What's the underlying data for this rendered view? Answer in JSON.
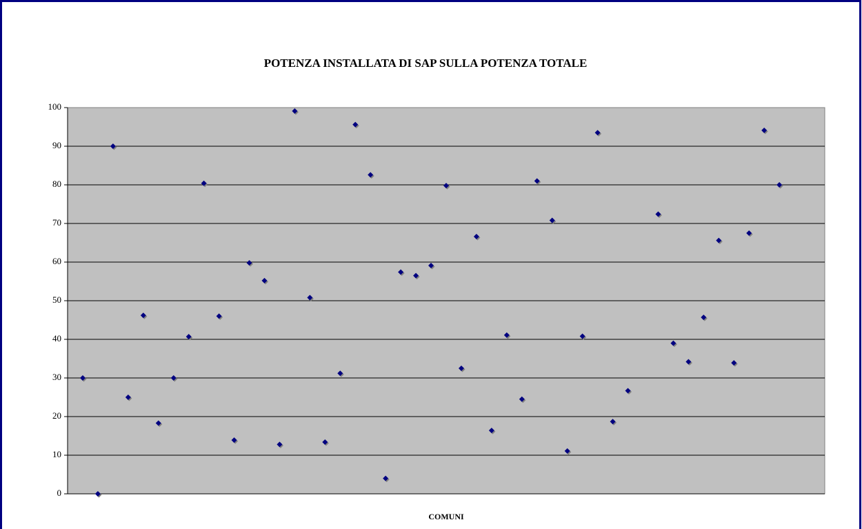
{
  "chart_data": {
    "type": "scatter",
    "title": "POTENZA INSTALLATA DI SAP SULLA POTENZA TOTALE",
    "x_label": "COMUNI",
    "x": [
      1,
      2,
      3,
      4,
      5,
      6,
      7,
      8,
      9,
      10,
      11,
      12,
      13,
      14,
      15,
      16,
      17,
      18,
      19,
      20,
      21,
      22,
      23,
      24,
      25,
      26,
      27,
      28,
      29,
      30,
      31,
      32,
      33,
      34,
      35,
      36,
      37,
      38,
      39,
      40,
      41,
      42,
      43,
      44,
      45,
      46,
      47
    ],
    "values": [
      30,
      0,
      90,
      25,
      46.2,
      18.3,
      30,
      40.7,
      80.4,
      46,
      13.9,
      59.8,
      55.2,
      12.8,
      99.1,
      50.8,
      13.4,
      31.2,
      95.6,
      82.6,
      4,
      57.4,
      56.5,
      59.1,
      79.8,
      32.5,
      66.6,
      16.4,
      41.1,
      24.5,
      81,
      70.8,
      11.1,
      40.8,
      93.5,
      18.7,
      26.7,
      null,
      72.4,
      39,
      34.2,
      45.7,
      65.6,
      33.9,
      67.5,
      94.1,
      80
    ],
    "color": "#000080",
    "xlim": [
      0,
      50
    ],
    "ylim": [
      0,
      100
    ],
    "yticks": [
      0,
      10,
      20,
      30,
      40,
      50,
      60,
      70,
      80,
      90,
      100
    ],
    "grid": true
  }
}
